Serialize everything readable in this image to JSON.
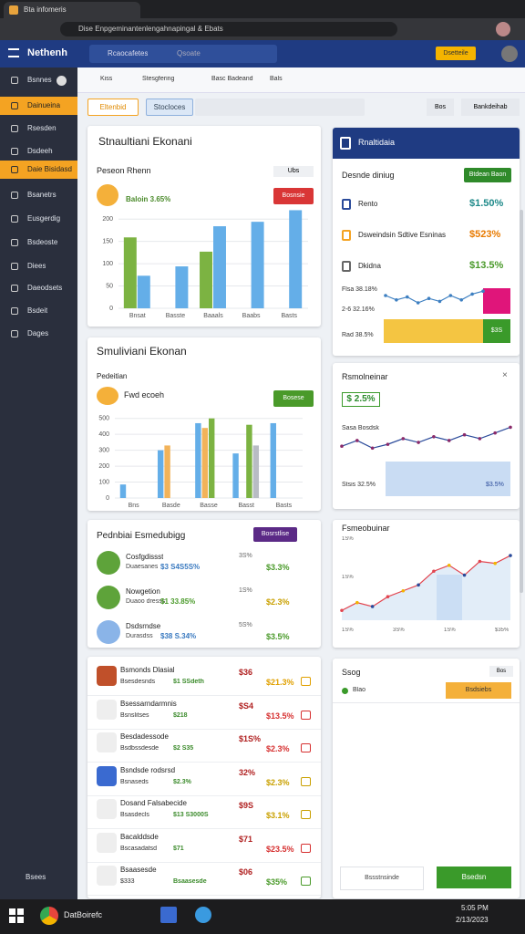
{
  "browser": {
    "tab_title": "Bta infomeris",
    "url": "Dise Enpgeminantenlengahnapingal & Ebats"
  },
  "header": {
    "brand": "Nethenh",
    "search": "Rcaocafetes",
    "search_hint": "Qsoate",
    "button": "Dsetteile"
  },
  "sidebar": {
    "items": [
      "Bsnnes",
      "Dainueina",
      "Rsesden",
      "Dsdeeh",
      "Daie Bisidasd",
      "Bsanetrs",
      "Eusgerdig",
      "Bsdeoste",
      "Diees",
      "Daeodsets",
      "Bsdeit",
      "Dages"
    ],
    "footer": "Bsees"
  },
  "toolbar": {
    "items": [
      "Kiss",
      "Stesgfering",
      "Basc Badeand",
      "Bals"
    ],
    "tabs": [
      "Eltenbid",
      "Stocloces"
    ],
    "actions": [
      "Bos",
      "Bankdeihab"
    ]
  },
  "left_cards": [
    {
      "title": "Stnaultiani Ekonani",
      "subtitle": "Peseon Rhenn",
      "filter": "Ubs",
      "metric": "Baloin 3.65%",
      "button": "Bosnsie",
      "chart": {
        "type": "bar",
        "categories": [
          "Bnsat",
          "Basste",
          "Baaals",
          "Baabs",
          "Basts"
        ],
        "series": [
          {
            "color": "#7cb342",
            "values": [
              159,
              null,
              127,
              null,
              null
            ]
          },
          {
            "color": "#64aee8",
            "values": [
              73,
              94,
              184,
              194,
              220
            ]
          }
        ],
        "ylim": [
          0,
          225
        ],
        "yticks": [
          0,
          50,
          100,
          150,
          200
        ]
      }
    },
    {
      "title": "Smuliviani Ekonan",
      "subtitle": "Pedeitian",
      "metric": "Fwd ecoeh",
      "button": "Bosese",
      "chart": {
        "type": "bar",
        "categories": [
          "Bns",
          "Basde",
          "Basse",
          "Basst",
          "Basts"
        ],
        "series": [
          {
            "color": "#64aee8",
            "values": [
              85,
              300,
              470,
              280,
              470
            ]
          },
          {
            "color": "#f2b35a",
            "values": [
              null,
              330,
              440,
              null,
              null
            ]
          },
          {
            "color": "#7cb342",
            "values": [
              null,
              null,
              500,
              460,
              null
            ]
          },
          {
            "color": "#b8bcc4",
            "values": [
              null,
              null,
              null,
              330,
              null
            ]
          }
        ],
        "ylim": [
          0,
          550
        ],
        "yticks": [
          0,
          100,
          200,
          300,
          400,
          500
        ]
      }
    },
    {
      "title": "Pednbiai Esmedubigg",
      "button": "Bosrstlise",
      "rows": [
        {
          "title": "Cosfgdissst",
          "detail": "Duaesanes",
          "value": "$3 S4S5S%",
          "stat": "3S%",
          "change": "$3.3%"
        },
        {
          "title": "Nowgetion",
          "detail": "Duaoo dresss",
          "value": "$1 33.85%",
          "stat": "1S%",
          "change": "$2.3%"
        },
        {
          "title": "Dsdsrndse",
          "detail": "Durasdss",
          "value": "$38 S.34%",
          "stat": "5S%",
          "change": "$3.5%"
        }
      ]
    },
    {
      "rows": [
        {
          "title": "Bsmonds Dlasial",
          "detail": "Bsesdesnds",
          "value": "$1 SSdeth",
          "stat": "$36",
          "change": "$21.3%"
        },
        {
          "title": "Bsessarndarmnis",
          "detail": "Bsnslitses",
          "value": "$218",
          "stat": "$S4",
          "change": "$13.5%"
        },
        {
          "title": "Besdadessode",
          "detail": "Bsdbssdesde",
          "value": "$2 S35",
          "stat": "$1S%",
          "change": "$2.3%"
        },
        {
          "title": "Bsndsde rodsrsd",
          "detail": "Bsnaseds",
          "value": "$2.3%",
          "stat": "32%",
          "change": "$2.3%"
        },
        {
          "title": "Dosand Falsabecide",
          "detail": "Bsasdecls",
          "value": "$13 S3000S",
          "stat": "$9S",
          "change": "$3.1%"
        },
        {
          "title": "Bacalddsde",
          "detail": "Bscasadatsd",
          "value": "$71",
          "stat": "$71",
          "change": "$23.5%"
        },
        {
          "title": "Bsaasesde",
          "detail": "$333",
          "value": "Bsaasesde",
          "stat": "$06",
          "change": "$35%"
        }
      ]
    }
  ],
  "right_cards": [
    {
      "title": "Rnaltidaia",
      "subtitle": "Desnde diniug",
      "button": "Btdean Baon",
      "rows": [
        {
          "label": "Rento",
          "value": "$1.50%"
        },
        {
          "label": "Dsweindsin Sdtive Esninas",
          "value": "$523%"
        },
        {
          "label": "Dkidna",
          "value": "$13.5%"
        }
      ],
      "labels": [
        "Flsa 38.18%",
        "2-6 32.16%",
        "Rad 38.5%"
      ],
      "badge": "$3S",
      "chart": {
        "type": "line",
        "color": "#3d7fc1",
        "values": [
          30,
          24,
          28,
          20,
          26,
          22,
          30,
          24,
          32,
          36
        ],
        "ylim": [
          0,
          45
        ]
      }
    },
    {
      "title": "Rsmolneinar",
      "metric": "$ 2.5%",
      "subtitle": "Sasa Bosdsk",
      "labels": [
        "Stsis 32.5%",
        "$3.5%"
      ],
      "chart": {
        "type": "line",
        "color": "#2a4a9a",
        "marker_color": "#8a2a6a",
        "values": [
          20,
          26,
          18,
          22,
          28,
          24,
          30,
          26,
          32,
          28,
          34,
          40
        ],
        "ylim": [
          0,
          50
        ]
      }
    },
    {
      "title": "Fsmeobuinar",
      "y_labels": [
        "1S%",
        "1S%"
      ],
      "x_labels": [
        "1S%",
        "3S%",
        "1S%",
        "$35%"
      ],
      "chart": {
        "type": "area",
        "color": "#e2454f",
        "values": [
          10,
          18,
          14,
          24,
          30,
          36,
          50,
          56,
          46,
          60,
          58,
          66
        ],
        "ylim": [
          0,
          80
        ]
      }
    },
    {
      "title": "Ssog",
      "close": "Bos",
      "item": "Blao",
      "button": "Bsdsiebs",
      "input": "Bssstnsinde",
      "submit": "Bsedsn"
    }
  ],
  "taskbar": {
    "search": "DatBoirefc",
    "time": "5:05 PM",
    "date": "2/13/2023"
  }
}
